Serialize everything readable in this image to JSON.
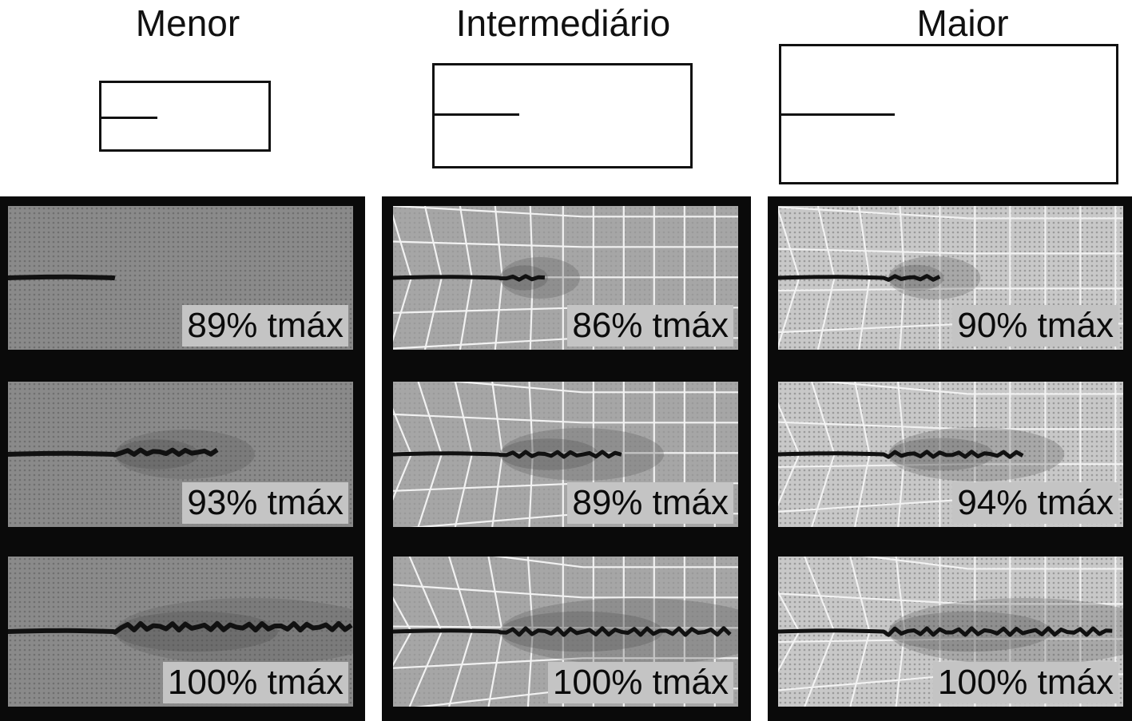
{
  "columns": [
    {
      "id": "menor",
      "title": "Menor",
      "panels": [
        {
          "label": "89% tmáx",
          "damage": 0.0
        },
        {
          "label": "93% tmáx",
          "damage": 0.45
        },
        {
          "label": "100% tmáx",
          "damage": 1.0
        }
      ]
    },
    {
      "id": "intermediario",
      "title": "Intermediário",
      "panels": [
        {
          "label": "86% tmáx",
          "damage": 0.2
        },
        {
          "label": "89% tmáx",
          "damage": 0.55
        },
        {
          "label": "100% tmáx",
          "damage": 1.0
        }
      ]
    },
    {
      "id": "maior",
      "title": "Maior",
      "panels": [
        {
          "label": "90% tmáx",
          "damage": 0.25
        },
        {
          "label": "94% tmáx",
          "damage": 0.6
        },
        {
          "label": "100% tmáx",
          "damage": 1.0
        }
      ]
    }
  ],
  "colors": {
    "frame": "#0a0a0a",
    "label_bg": "#c4c4c4",
    "specimen_small": "#8a8a8a",
    "specimen_mid": "#a6a6a6",
    "specimen_large": "#c8c8c8",
    "crack": "#111111"
  }
}
